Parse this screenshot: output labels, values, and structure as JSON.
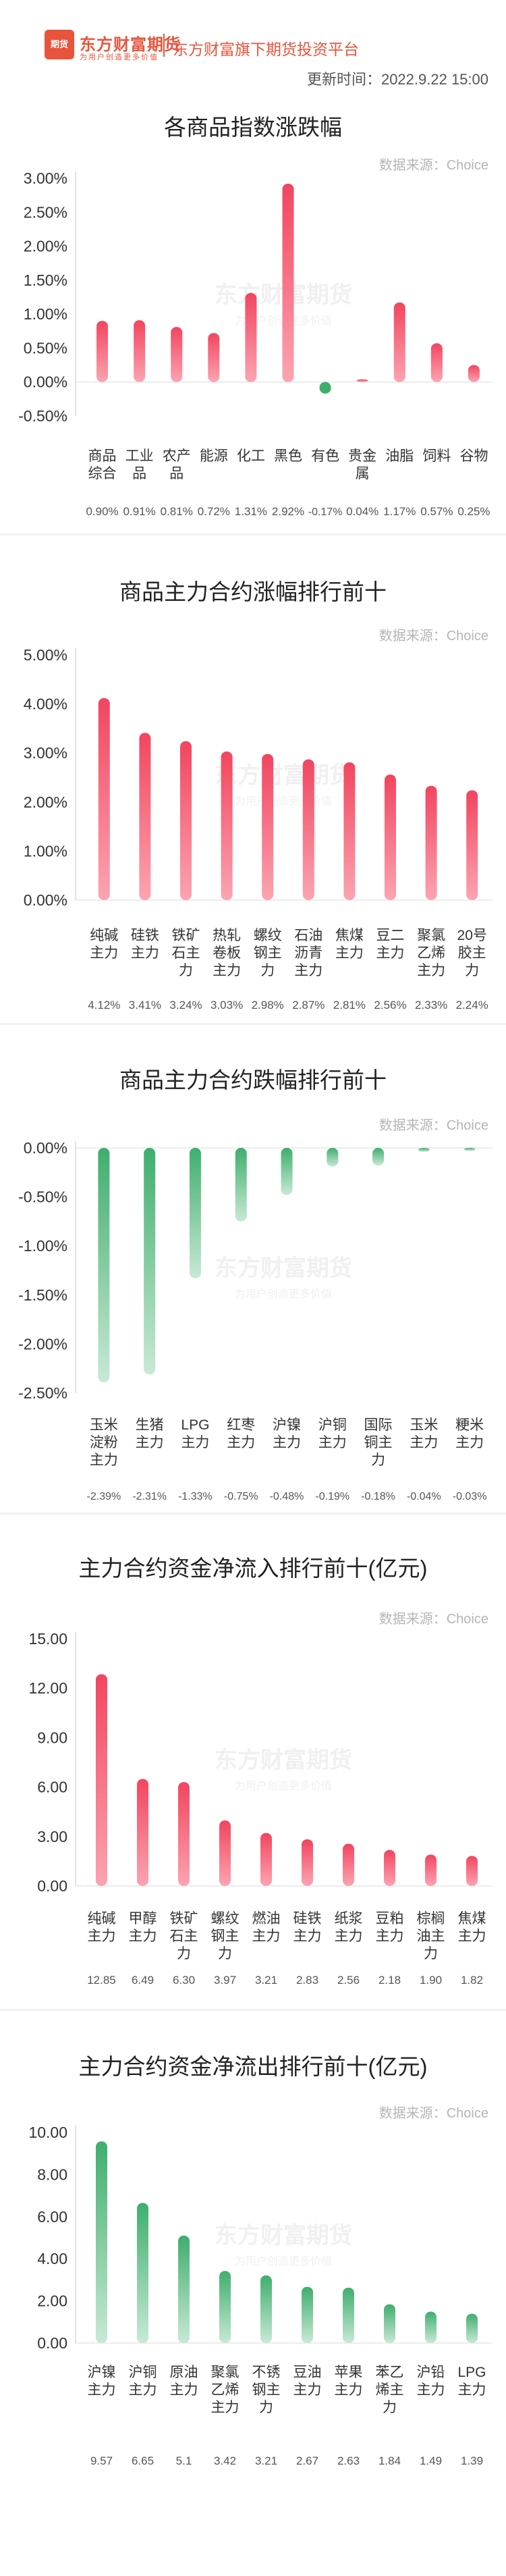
{
  "header": {
    "logo_badge": "期货",
    "brand": "东方财富期货",
    "slogan": "为用户创造更多价值",
    "tagline": "东方财富旗下期货投资平台",
    "update_time": "更新时间：2022.9.22 15:00"
  },
  "watermark": {
    "name": "东方财富期货",
    "slogan": "为用户创造更多价值"
  },
  "chart_data": [
    {
      "type": "bar",
      "title": "各商品指数涨跌幅",
      "source": "数据来源：Choice",
      "categories": [
        "商品综合",
        "工业品",
        "农产品",
        "能源",
        "化工",
        "黑色",
        "有色",
        "贵金属",
        "油脂",
        "饲料",
        "谷物"
      ],
      "values": [
        0.9,
        0.91,
        0.81,
        0.72,
        1.31,
        2.92,
        -0.17,
        0.04,
        1.17,
        0.57,
        0.25
      ],
      "value_labels": [
        "0.90%",
        "0.91%",
        "0.81%",
        "0.72%",
        "1.31%",
        "2.92%",
        "-0.17%",
        "0.04%",
        "1.17%",
        "0.57%",
        "0.25%"
      ],
      "yticks": [
        "3.00%",
        "2.50%",
        "2.00%",
        "1.50%",
        "1.00%",
        "0.50%",
        "0.00%",
        "-0.50%"
      ],
      "ylim": [
        -0.5,
        3.0
      ],
      "unit": "%",
      "grid": false,
      "colors": {
        "positive": "#f2455f",
        "negative": "#3fae6d"
      }
    },
    {
      "type": "bar",
      "title": "商品主力合约涨幅排行前十",
      "source": "数据来源：Choice",
      "categories": [
        "纯碱主力",
        "硅铁主力",
        "铁矿石主力",
        "热轧卷板主力",
        "螺纹钢主力",
        "石油沥青主力",
        "焦煤主力",
        "豆二主力",
        "聚氯乙烯主力",
        "20号胶主力"
      ],
      "values": [
        4.12,
        3.41,
        3.24,
        3.03,
        2.98,
        2.87,
        2.81,
        2.56,
        2.33,
        2.24
      ],
      "value_labels": [
        "4.12%",
        "3.41%",
        "3.24%",
        "3.03%",
        "2.98%",
        "2.87%",
        "2.81%",
        "2.56%",
        "2.33%",
        "2.24%"
      ],
      "yticks": [
        "5.00%",
        "4.00%",
        "3.00%",
        "2.00%",
        "1.00%",
        "0.00%"
      ],
      "ylim": [
        0,
        5
      ],
      "unit": "%",
      "grid": false,
      "colors": {
        "positive": "#f2455f"
      }
    },
    {
      "type": "bar",
      "title": "商品主力合约跌幅排行前十",
      "source": "数据来源：Choice",
      "categories": [
        "玉米淀粉主力",
        "生猪主力",
        "LPG主力",
        "红枣主力",
        "沪镍主力",
        "沪铜主力",
        "国际铜主力",
        "玉米主力",
        "粳米主力"
      ],
      "values": [
        -2.39,
        -2.31,
        -1.33,
        -0.75,
        -0.48,
        -0.19,
        -0.18,
        -0.04,
        -0.03
      ],
      "value_labels": [
        "-2.39%",
        "-2.31%",
        "-1.33%",
        "-0.75%",
        "-0.48%",
        "-0.19%",
        "-0.18%",
        "-0.04%",
        "-0.03%"
      ],
      "yticks": [
        "0.00%",
        "-0.50%",
        "-1.00%",
        "-1.50%",
        "-2.00%",
        "-2.50%"
      ],
      "ylim": [
        -2.5,
        0
      ],
      "unit": "%",
      "grid": false,
      "colors": {
        "negative": "#3fae6d"
      }
    },
    {
      "type": "bar",
      "title": "主力合约资金净流入排行前十(亿元)",
      "source": "数据来源：Choice",
      "categories": [
        "纯碱主力",
        "甲醇主力",
        "铁矿石主力",
        "螺纹钢主力",
        "燃油主力",
        "硅铁主力",
        "纸浆主力",
        "豆粕主力",
        "棕榈油主力",
        "焦煤主力"
      ],
      "values": [
        12.85,
        6.49,
        6.3,
        3.97,
        3.21,
        2.83,
        2.56,
        2.18,
        1.9,
        1.82
      ],
      "value_labels": [
        "12.85",
        "6.49",
        "6.30",
        "3.97",
        "3.21",
        "2.83",
        "2.56",
        "2.18",
        "1.90",
        "1.82"
      ],
      "yticks": [
        "15.00",
        "12.00",
        "9.00",
        "6.00",
        "3.00",
        "0.00"
      ],
      "ylim": [
        0,
        15
      ],
      "unit": "亿元",
      "grid": false,
      "colors": {
        "positive": "#f2455f"
      }
    },
    {
      "type": "bar",
      "title": "主力合约资金净流出排行前十(亿元)",
      "source": "数据来源：Choice",
      "categories": [
        "沪镍主力",
        "沪铜主力",
        "原油主力",
        "聚氯乙烯主力",
        "不锈钢主力",
        "豆油主力",
        "苹果主力",
        "苯乙烯主力",
        "沪铅主力",
        "LPG主力"
      ],
      "values": [
        9.57,
        6.65,
        5.1,
        3.42,
        3.21,
        2.67,
        2.63,
        1.84,
        1.49,
        1.39
      ],
      "value_labels": [
        "9.57",
        "6.65",
        "5.1",
        "3.42",
        "3.21",
        "2.67",
        "2.63",
        "1.84",
        "1.49",
        "1.39"
      ],
      "yticks": [
        "10.00",
        "8.00",
        "6.00",
        "4.00",
        "2.00",
        "0.00"
      ],
      "ylim": [
        0,
        10
      ],
      "unit": "亿元",
      "grid": false,
      "colors": {
        "positive": "#3fae6d"
      }
    }
  ]
}
